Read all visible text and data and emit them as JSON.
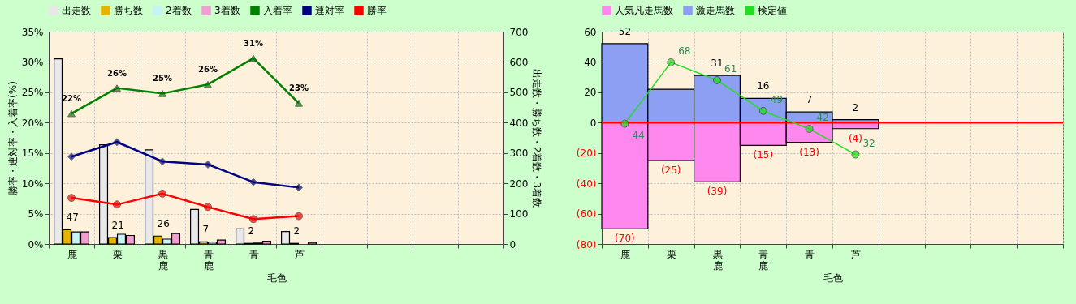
{
  "chart_data": [
    {
      "type": "bar",
      "legend": "top",
      "grid": true,
      "categories": [
        "鹿",
        "栗",
        "黒鹿",
        "青鹿",
        "青",
        "芦",
        null,
        null,
        null,
        null
      ],
      "xlabel": "毛色",
      "ylabel": "勝率・連対率・入着率(%)",
      "y2label": "出走数・勝ち数・2着数・3着数",
      "ylim": [
        0,
        35
      ],
      "yticks": [
        {
          "value": 0,
          "label": "0%"
        },
        {
          "value": 5,
          "label": "5%"
        },
        {
          "value": 10,
          "label": "10%"
        },
        {
          "value": 15,
          "label": "15%"
        },
        {
          "value": 20,
          "label": "20%"
        },
        {
          "value": 25,
          "label": "25%"
        },
        {
          "value": 30,
          "label": "30%"
        },
        {
          "value": 35,
          "label": "35%"
        }
      ],
      "y2lim": [
        0,
        700
      ],
      "y2ticks": [
        0,
        100,
        200,
        300,
        400,
        500,
        600,
        700
      ],
      "series": [
        {
          "name": "出走数",
          "color": "#e8e8e8",
          "axis": "y2",
          "values": [
            610,
            327,
            310,
            114,
            50,
            41,
            null,
            null,
            null,
            null
          ]
        },
        {
          "name": "勝ち数",
          "color": "#e6b400",
          "axis": "y2",
          "values": [
            47,
            21,
            26,
            7,
            2,
            2,
            null,
            null,
            null,
            null
          ],
          "value_labels": [
            "47",
            "21",
            "26",
            "7",
            "2",
            "2",
            null,
            null,
            null,
            null
          ]
        },
        {
          "name": "2着数",
          "color": "#c4f4f4",
          "axis": "y2",
          "values": [
            40,
            32,
            16,
            6,
            3,
            null,
            null,
            null,
            null,
            null
          ]
        },
        {
          "name": "3着数",
          "color": "#f0a0d0",
          "axis": "y2",
          "values": [
            40,
            28,
            34,
            13,
            9,
            5,
            null,
            null,
            null,
            null
          ]
        },
        {
          "name": "入着率",
          "type": "line",
          "marker": "triangle",
          "color": "#008000",
          "values": [
            21.5,
            25.7,
            24.8,
            26.3,
            30.6,
            23.2,
            null,
            null,
            null,
            null
          ],
          "value_labels": [
            "22%",
            "26%",
            "25%",
            "26%",
            "31%",
            "23%",
            null,
            null,
            null,
            null
          ]
        },
        {
          "name": "連対率",
          "type": "line",
          "marker": "diamond",
          "color": "#000080",
          "values": [
            14.4,
            16.8,
            13.6,
            13.1,
            10.2,
            9.3,
            null,
            null,
            null,
            null
          ]
        },
        {
          "name": "勝率",
          "type": "line",
          "marker": "circle",
          "color": "#ff0000",
          "values": [
            7.6,
            6.5,
            8.3,
            6.1,
            4.1,
            4.6,
            null,
            null,
            null,
            null
          ]
        }
      ]
    },
    {
      "type": "bar",
      "stacked": true,
      "legend": "top",
      "grid": true,
      "categories": [
        "鹿",
        "栗",
        "黒鹿",
        "青鹿",
        "青",
        "芦",
        null,
        null,
        null,
        null
      ],
      "xlabel": "毛色",
      "ylim": [
        -80,
        60
      ],
      "yticks": [
        {
          "value": -80,
          "label": "(80)"
        },
        {
          "value": -60,
          "label": "(60)"
        },
        {
          "value": -40,
          "label": "(40)"
        },
        {
          "value": -20,
          "label": "(20)"
        },
        0,
        20,
        40,
        60
      ],
      "y2lim": [
        -3,
        80
      ],
      "ref_lines": [
        {
          "axis": "y",
          "value": 0,
          "color": "#ff0000"
        }
      ],
      "series": [
        {
          "name": "人気凡走馬数",
          "color": "#ff88ee",
          "values": [
            -70,
            -25,
            -39,
            -15,
            -13,
            -4,
            null,
            null,
            null,
            null
          ],
          "value_labels": [
            "(70)",
            "(25)",
            "(39)",
            "(15)",
            "(13)",
            "(4)",
            null,
            null,
            null,
            null
          ]
        },
        {
          "name": "激走馬数",
          "color": "#8c9ff2",
          "values": [
            52,
            22,
            31,
            16,
            7,
            2,
            null,
            null,
            null,
            null
          ],
          "value_labels": [
            "52",
            null,
            "31",
            "16",
            "7",
            "2",
            null,
            null,
            null,
            null
          ]
        },
        {
          "name": "検定値",
          "type": "line",
          "axis": "y2",
          "marker": "circle",
          "color": "#22dd22",
          "values": [
            44,
            68,
            61,
            49,
            42,
            32,
            null,
            null,
            null,
            null
          ],
          "value_labels": [
            "44",
            "68",
            "61",
            "49",
            "42",
            "32",
            null,
            null,
            null,
            null
          ]
        }
      ]
    }
  ]
}
